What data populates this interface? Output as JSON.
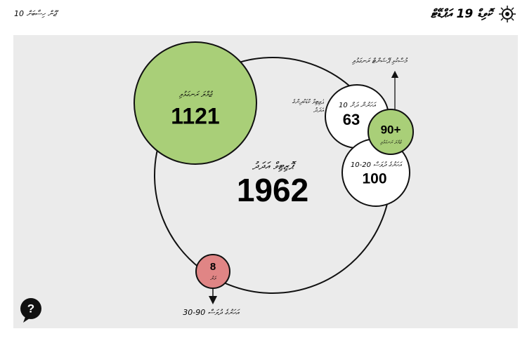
{
  "header": {
    "title": "ކޮވިޑް 19 އަޕްޑޭޓް",
    "date": "10 ޖޫން ހިސާބަށް"
  },
  "total": {
    "label": "ޕޮޒިޓިވް އަދަދު",
    "value": 1962
  },
  "recovered": {
    "label": "ޖުމްލަ ރަނގަޅުވި",
    "value": 1121
  },
  "under10": {
    "label": "10 އަހަރުން ދަށް",
    "value": 63,
    "note": "ޕޮޒިޓިވް ކުޑަކުދިންގެ އަދަދު"
  },
  "oldest": {
    "label": "90+",
    "sublabel": "ޖުމްލަ ރަނގަޅުވި",
    "note": "މުސްކުޅި ޕޭޝަންޓް ރަނގަޅުވި"
  },
  "age10to20": {
    "label": "10-20 އަހަރުގެ ދުވަސް",
    "value": 100
  },
  "deaths": {
    "label": "މަރު",
    "value": 8,
    "note": "30-90 އަހަރުގެ ދުވަސް"
  }
}
